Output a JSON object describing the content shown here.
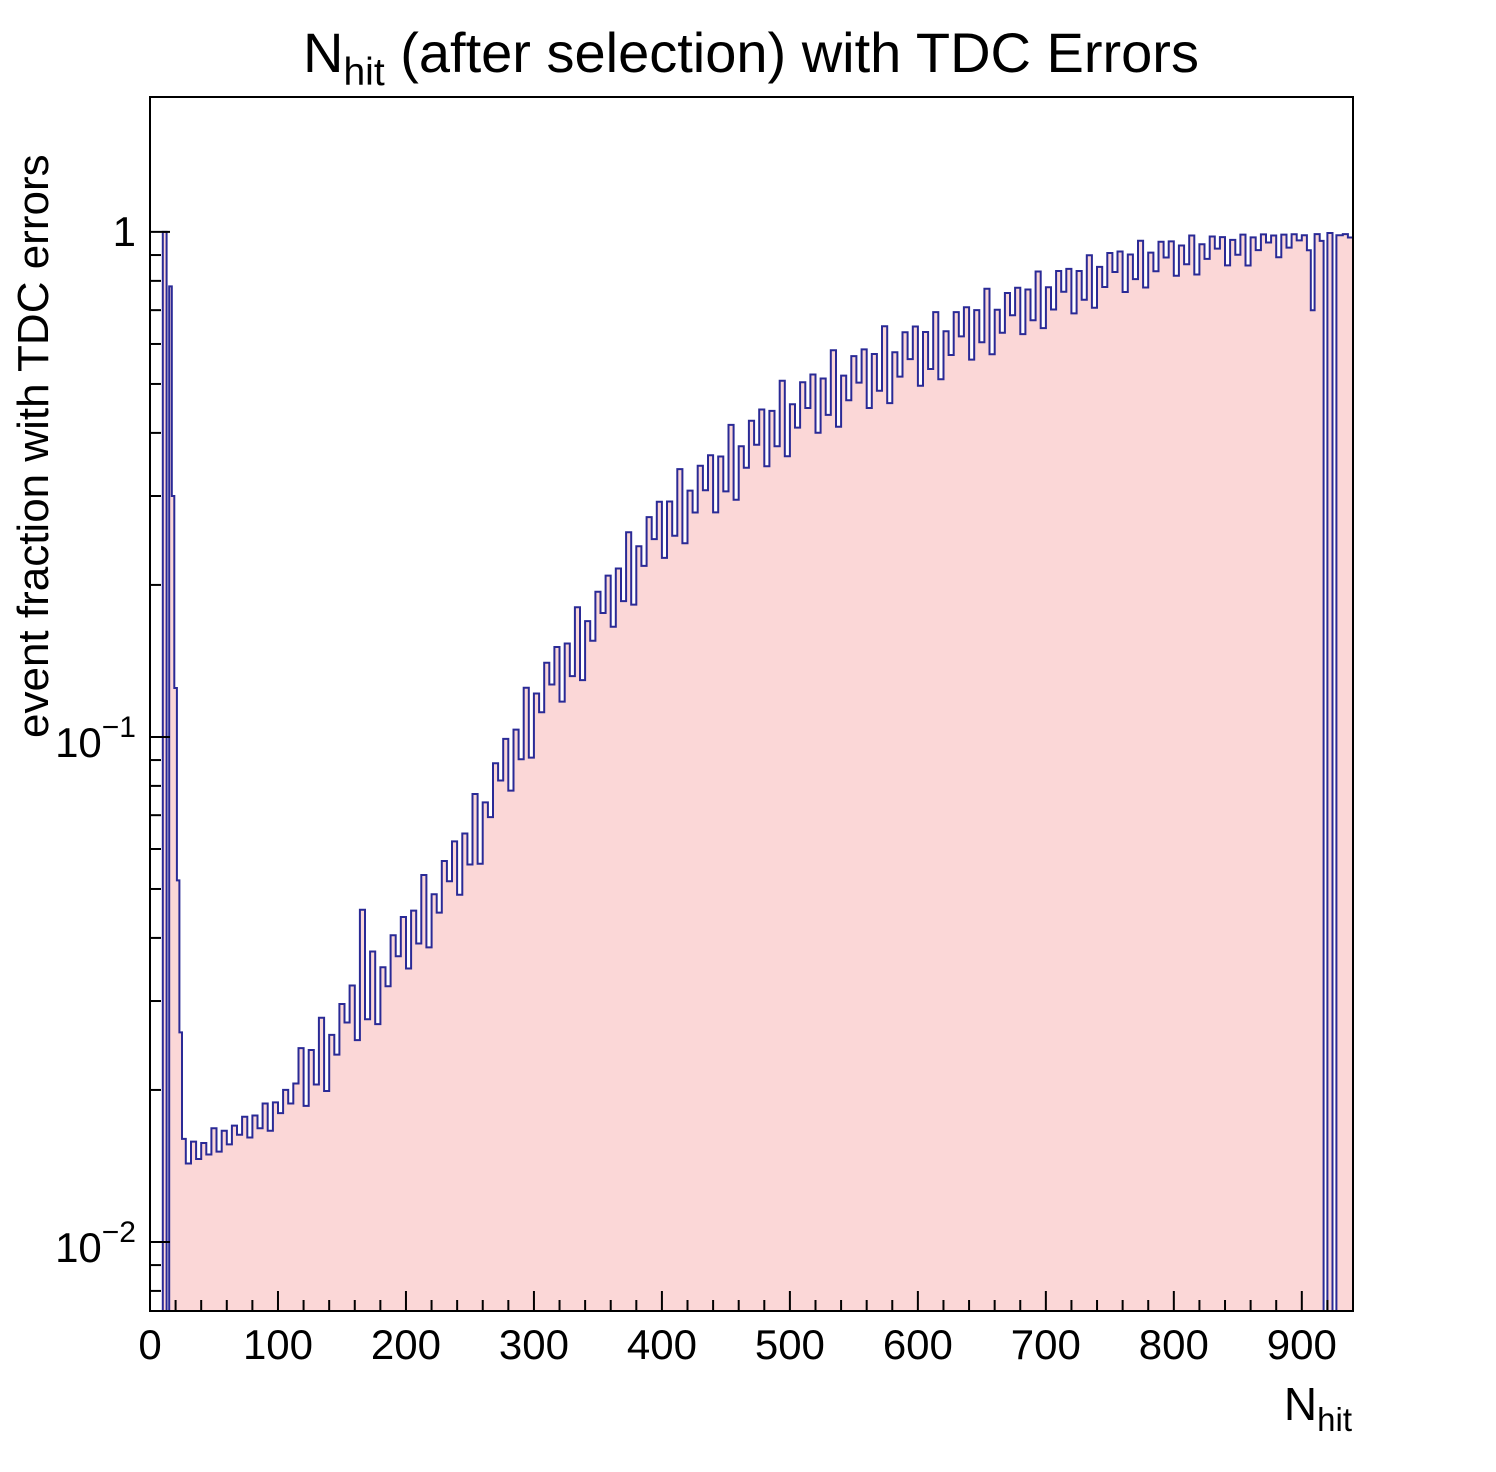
{
  "page": {
    "background": "#ffffff"
  },
  "chart_data": {
    "type": "histogram",
    "title": {
      "prefix": "N",
      "subscript": "hit",
      "suffix": " (after selection) with TDC Errors"
    },
    "x_axis": {
      "title_prefix": "N",
      "title_subscript": "hit",
      "min": 0,
      "max": 940,
      "major_ticks": [
        0,
        100,
        200,
        300,
        400,
        500,
        600,
        700,
        800,
        900
      ],
      "minor_tick_step": 20
    },
    "y_axis": {
      "title": "event fraction with TDC errors",
      "scale": "log",
      "min": 0.0073,
      "max": 1.85,
      "ticks": [
        {
          "value": 1,
          "base": "1",
          "exp": ""
        },
        {
          "value": 0.1,
          "base": "10",
          "exp": "−1"
        },
        {
          "value": 0.01,
          "base": "10",
          "exp": "−2"
        }
      ]
    },
    "style": {
      "line_color": "#2a2a96",
      "fill_color": "#fbd7d7",
      "frame_color": "#000000",
      "text_color": "#000000"
    },
    "bins": [
      [
        0,
        0
      ],
      [
        10,
        1.0
      ],
      [
        13,
        0
      ],
      [
        15,
        0.78
      ],
      [
        17,
        0.3
      ],
      [
        19,
        0.125
      ],
      [
        21,
        0.052
      ],
      [
        23,
        0.026
      ],
      [
        25,
        0.016
      ],
      [
        28,
        0.0143
      ],
      [
        32,
        0.0158
      ],
      [
        36,
        0.0146
      ],
      [
        40,
        0.0157
      ],
      [
        44,
        0.0149
      ],
      [
        48,
        0.0168
      ],
      [
        52,
        0.0151
      ],
      [
        56,
        0.0166
      ],
      [
        60,
        0.0156
      ],
      [
        64,
        0.017
      ],
      [
        68,
        0.0163
      ],
      [
        72,
        0.0177
      ],
      [
        76,
        0.0161
      ],
      [
        80,
        0.0178
      ],
      [
        84,
        0.0168
      ],
      [
        88,
        0.0188
      ],
      [
        92,
        0.0166
      ],
      [
        96,
        0.0189
      ],
      [
        100,
        0.018
      ],
      [
        104,
        0.02
      ],
      [
        108,
        0.0188
      ],
      [
        112,
        0.0206
      ],
      [
        116,
        0.0242
      ],
      [
        120,
        0.0186
      ],
      [
        124,
        0.024
      ],
      [
        128,
        0.0205
      ],
      [
        132,
        0.0278
      ],
      [
        136,
        0.0199
      ],
      [
        140,
        0.0257
      ],
      [
        144,
        0.0235
      ],
      [
        148,
        0.0296
      ],
      [
        152,
        0.0272
      ],
      [
        156,
        0.0322
      ],
      [
        160,
        0.0251
      ],
      [
        164,
        0.0455
      ],
      [
        168,
        0.0276
      ],
      [
        172,
        0.0376
      ],
      [
        176,
        0.027
      ],
      [
        180,
        0.035
      ],
      [
        184,
        0.0321
      ],
      [
        188,
        0.0405
      ],
      [
        192,
        0.0368
      ],
      [
        196,
        0.044
      ],
      [
        200,
        0.0348
      ],
      [
        204,
        0.0453
      ],
      [
        208,
        0.039
      ],
      [
        212,
        0.0533
      ],
      [
        216,
        0.0383
      ],
      [
        220,
        0.0488
      ],
      [
        224,
        0.0449
      ],
      [
        228,
        0.0568
      ],
      [
        232,
        0.0518
      ],
      [
        236,
        0.0621
      ],
      [
        240,
        0.0487
      ],
      [
        244,
        0.0644
      ],
      [
        248,
        0.0559
      ],
      [
        252,
        0.0771
      ],
      [
        256,
        0.0561
      ],
      [
        260,
        0.0742
      ],
      [
        264,
        0.0694
      ],
      [
        268,
        0.0887
      ],
      [
        272,
        0.082
      ],
      [
        276,
        0.0991
      ],
      [
        280,
        0.0783
      ],
      [
        284,
        0.1034
      ],
      [
        288,
        0.0903
      ],
      [
        292,
        0.1251
      ],
      [
        296,
        0.091
      ],
      [
        300,
        0.1219
      ],
      [
        304,
        0.1119
      ],
      [
        308,
        0.1402
      ],
      [
        312,
        0.127
      ],
      [
        316,
        0.1507
      ],
      [
        320,
        0.1175
      ],
      [
        324,
        0.1531
      ],
      [
        328,
        0.132
      ],
      [
        332,
        0.1806
      ],
      [
        336,
        0.1296
      ],
      [
        340,
        0.1696
      ],
      [
        344,
        0.1551
      ],
      [
        348,
        0.1938
      ],
      [
        352,
        0.176
      ],
      [
        356,
        0.2087
      ],
      [
        360,
        0.1653
      ],
      [
        364,
        0.2156
      ],
      [
        368,
        0.1858
      ],
      [
        372,
        0.2544
      ],
      [
        376,
        0.1828
      ],
      [
        380,
        0.2385
      ],
      [
        384,
        0.2181
      ],
      [
        388,
        0.2725
      ],
      [
        392,
        0.2465
      ],
      [
        396,
        0.2921
      ],
      [
        400,
        0.2262
      ],
      [
        404,
        0.2926
      ],
      [
        408,
        0.2502
      ],
      [
        412,
        0.3392
      ],
      [
        416,
        0.2418
      ],
      [
        420,
        0.3074
      ],
      [
        424,
        0.2782
      ],
      [
        428,
        0.3443
      ],
      [
        432,
        0.308
      ],
      [
        436,
        0.3611
      ],
      [
        440,
        0.2784
      ],
      [
        444,
        0.3592
      ],
      [
        448,
        0.3064
      ],
      [
        452,
        0.4148
      ],
      [
        456,
        0.295
      ],
      [
        460,
        0.3763
      ],
      [
        464,
        0.3412
      ],
      [
        468,
        0.4229
      ],
      [
        472,
        0.379
      ],
      [
        476,
        0.4451
      ],
      [
        480,
        0.3437
      ],
      [
        484,
        0.4422
      ],
      [
        488,
        0.3763
      ],
      [
        492,
        0.5075
      ],
      [
        496,
        0.3596
      ],
      [
        500,
        0.4558
      ],
      [
        504,
        0.4098
      ],
      [
        508,
        0.5039
      ],
      [
        512,
        0.448
      ],
      [
        516,
        0.5221
      ],
      [
        520,
        0.4002
      ],
      [
        524,
        0.5126
      ],
      [
        528,
        0.4342
      ],
      [
        532,
        0.5832
      ],
      [
        536,
        0.4114
      ],
      [
        540,
        0.5194
      ],
      [
        544,
        0.4644
      ],
      [
        548,
        0.5677
      ],
      [
        552,
        0.503
      ],
      [
        556,
        0.5854
      ],
      [
        560,
        0.4481
      ],
      [
        564,
        0.5731
      ],
      [
        568,
        0.4848
      ],
      [
        572,
        0.6503
      ],
      [
        576,
        0.4582
      ],
      [
        580,
        0.5777
      ],
      [
        584,
        0.517
      ],
      [
        588,
        0.6327
      ],
      [
        592,
        0.56
      ],
      [
        596,
        0.6498
      ],
      [
        600,
        0.4959
      ],
      [
        604,
        0.6336
      ],
      [
        608,
        0.5354
      ],
      [
        612,
        0.6938
      ],
      [
        616,
        0.5108
      ],
      [
        620,
        0.636
      ],
      [
        624,
        0.5706
      ],
      [
        628,
        0.6938
      ],
      [
        632,
        0.621
      ],
      [
        636,
        0.7096
      ],
      [
        640,
        0.5588
      ],
      [
        644,
        0.7003
      ],
      [
        648,
        0.6045
      ],
      [
        652,
        0.7717
      ],
      [
        656,
        0.5725
      ],
      [
        660,
        0.7014
      ],
      [
        664,
        0.6317
      ],
      [
        668,
        0.7571
      ],
      [
        672,
        0.684
      ],
      [
        676,
        0.775
      ],
      [
        680,
        0.6275
      ],
      [
        684,
        0.769
      ],
      [
        688,
        0.6687
      ],
      [
        692,
        0.8349
      ],
      [
        696,
        0.645
      ],
      [
        700,
        0.777
      ],
      [
        704,
        0.7022
      ],
      [
        708,
        0.8369
      ],
      [
        712,
        0.761
      ],
      [
        716,
        0.8448
      ],
      [
        720,
        0.6898
      ],
      [
        724,
        0.8367
      ],
      [
        728,
        0.7338
      ],
      [
        732,
        0.8995
      ],
      [
        736,
        0.7075
      ],
      [
        740,
        0.8526
      ],
      [
        744,
        0.7781
      ],
      [
        748,
        0.9086
      ],
      [
        752,
        0.833
      ],
      [
        756,
        0.9145
      ],
      [
        760,
        0.7605
      ],
      [
        764,
        0.9021
      ],
      [
        768,
        0.8065
      ],
      [
        772,
        0.9602
      ],
      [
        776,
        0.7761
      ],
      [
        780,
        0.91
      ],
      [
        784,
        0.836
      ],
      [
        788,
        0.9558
      ],
      [
        792,
        0.89
      ],
      [
        796,
        0.9577
      ],
      [
        800,
        0.819
      ],
      [
        804,
        0.9402
      ],
      [
        808,
        0.8626
      ],
      [
        812,
        0.9839
      ],
      [
        816,
        0.8235
      ],
      [
        820,
        0.9455
      ],
      [
        824,
        0.8842
      ],
      [
        828,
        0.9794
      ],
      [
        832,
        0.927
      ],
      [
        836,
        0.9765
      ],
      [
        840,
        0.8584
      ],
      [
        844,
        0.9641
      ],
      [
        848,
        0.9014
      ],
      [
        852,
        0.9881
      ],
      [
        856,
        0.8581
      ],
      [
        860,
        0.9754
      ],
      [
        864,
        0.9205
      ],
      [
        868,
        0.989
      ],
      [
        872,
        0.953
      ],
      [
        876,
        0.9837
      ],
      [
        880,
        0.8909
      ],
      [
        884,
        0.9878
      ],
      [
        888,
        0.9312
      ],
      [
        892,
        0.9898
      ],
      [
        896,
        0.962
      ],
      [
        900,
        0.985
      ],
      [
        904,
        0.92
      ],
      [
        907,
        0.7
      ],
      [
        910,
        0.99
      ],
      [
        914,
        0.96
      ],
      [
        917,
        0
      ],
      [
        920,
        0.995
      ],
      [
        924,
        0
      ],
      [
        927,
        0.985
      ],
      [
        932,
        0.99
      ],
      [
        936,
        0.975
      ],
      [
        940,
        0.975
      ]
    ]
  }
}
